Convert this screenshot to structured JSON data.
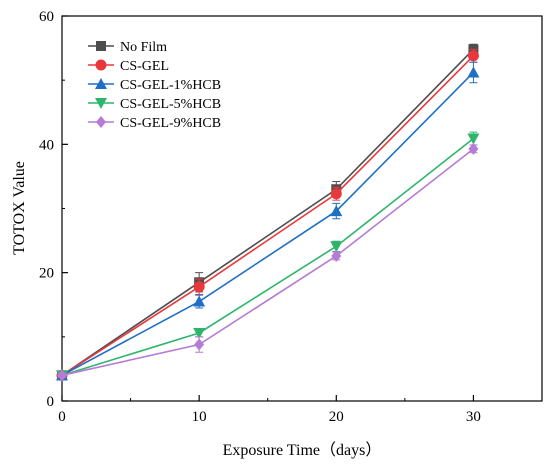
{
  "chart_data": {
    "type": "line",
    "xlabel": "Exposure Time（days）",
    "ylabel": "TOTOX Value",
    "x": [
      0,
      10,
      20,
      30
    ],
    "xlim": [
      0,
      35
    ],
    "ylim": [
      0,
      60
    ],
    "xticks": [
      0,
      10,
      20,
      30
    ],
    "yticks": [
      0,
      20,
      40,
      60
    ],
    "grid": false,
    "legend_position": "top-left",
    "series": [
      {
        "name": "No Film",
        "color": "#4d4d4d",
        "marker": "square",
        "values": [
          4.0,
          18.5,
          33.0,
          54.8
        ],
        "errors": [
          0.5,
          1.5,
          1.2,
          0.8
        ]
      },
      {
        "name": "CS-GEL",
        "color": "#e8383d",
        "marker": "circle",
        "values": [
          4.0,
          17.8,
          32.3,
          53.8
        ],
        "errors": [
          0.5,
          1.2,
          1.0,
          1.0
        ]
      },
      {
        "name": "CS-GEL-1%HCB",
        "color": "#1f6fc5",
        "marker": "triangle-up",
        "values": [
          4.0,
          15.5,
          29.6,
          51.2
        ],
        "errors": [
          0.5,
          1.0,
          1.2,
          1.6
        ]
      },
      {
        "name": "CS-GEL-5%HCB",
        "color": "#2db56b",
        "marker": "triangle-down",
        "values": [
          4.0,
          10.6,
          24.1,
          40.9
        ],
        "errors": [
          0.3,
          0.6,
          0.8,
          1.0
        ]
      },
      {
        "name": "CS-GEL-9%HCB",
        "color": "#b57bd6",
        "marker": "diamond",
        "values": [
          4.0,
          8.8,
          22.6,
          39.3
        ],
        "errors": [
          0.3,
          1.2,
          0.6,
          0.6
        ]
      }
    ]
  }
}
